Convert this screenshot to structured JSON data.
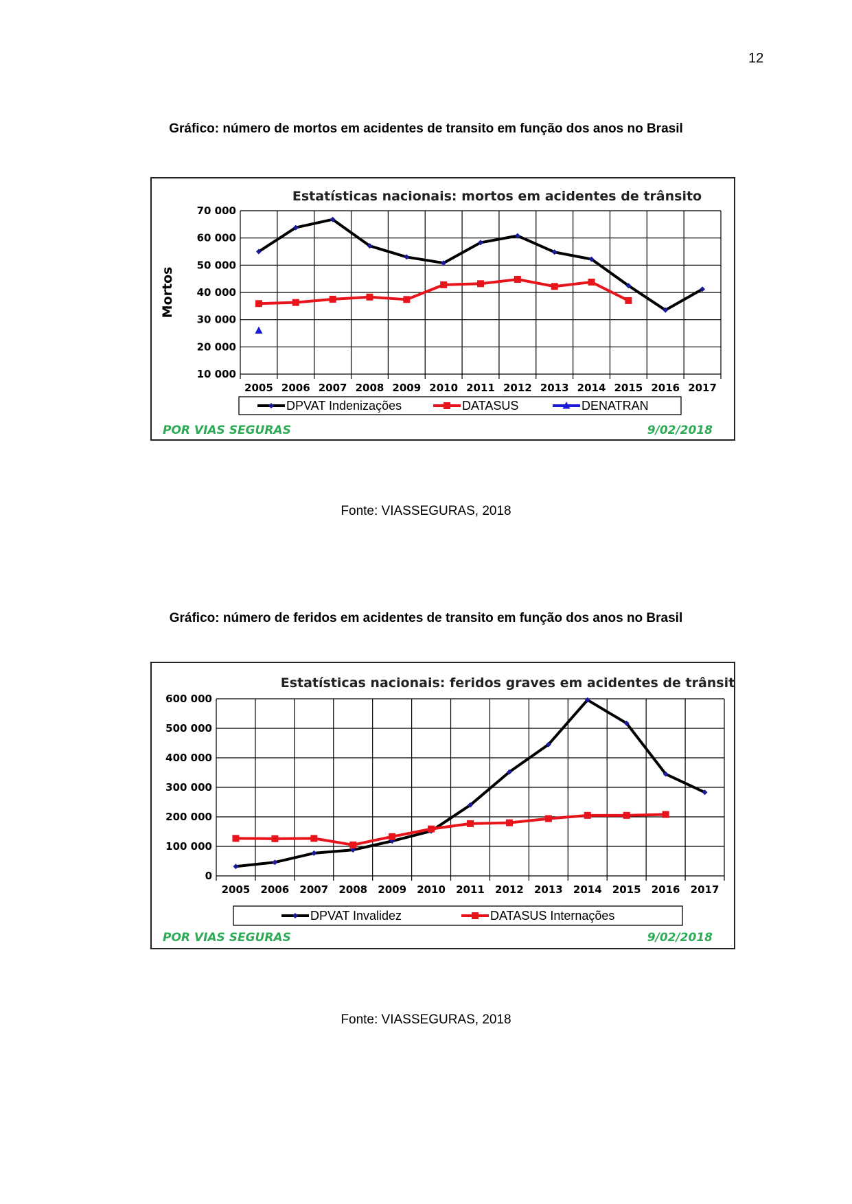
{
  "page": {
    "number": "12",
    "figures": [
      {
        "caption": "Gráfico: número de mortos em acidentes de transito em função dos anos no Brasil",
        "source": "Fonte: VIASSEGURAS, 2018",
        "brand": "POR VIAS SEGURAS",
        "date": "9/02/2018"
      },
      {
        "caption": "Gráfico: número de feridos em acidentes de transito em função dos anos no Brasil",
        "source": "Fonte: VIASSEGURAS, 2018",
        "brand": "POR VIAS SEGURAS",
        "date": "9/02/2018"
      }
    ]
  },
  "chart_data": [
    {
      "type": "line",
      "title": "Estatísticas nacionais: mortos em acidentes de trânsito",
      "xlabel": "",
      "ylabel": "Mortos",
      "categories": [
        "2005",
        "2006",
        "2007",
        "2008",
        "2009",
        "2010",
        "2011",
        "2012",
        "2013",
        "2014",
        "2015",
        "2016",
        "2017"
      ],
      "ylim": [
        10000,
        70000
      ],
      "yticks": [
        10000,
        20000,
        30000,
        40000,
        50000,
        60000,
        70000
      ],
      "ytick_labels": [
        "10 000",
        "20 000",
        "30 000",
        "40 000",
        "50 000",
        "60 000",
        "70 000"
      ],
      "grid": true,
      "legend_position": "bottom",
      "series": [
        {
          "name": "DPVAT Indenizações",
          "color": "#000000",
          "marker": "diamond",
          "values": [
            55000,
            63800,
            66800,
            57100,
            53000,
            50800,
            58300,
            60800,
            54800,
            52200,
            42500,
            33500,
            41200
          ]
        },
        {
          "name": "DATASUS",
          "color": "#e8141b",
          "marker": "square",
          "values": [
            35900,
            36300,
            37500,
            38300,
            37400,
            42800,
            43200,
            44800,
            42200,
            43800,
            37000,
            null,
            null
          ]
        },
        {
          "name": "DENATRAN",
          "color": "#1a1ad6",
          "marker": "triangle",
          "values": [
            26000,
            null,
            null,
            null,
            null,
            null,
            null,
            null,
            null,
            null,
            null,
            null,
            null
          ]
        }
      ]
    },
    {
      "type": "line",
      "title": "Estatísticas nacionais: feridos graves em acidentes de trânsito",
      "xlabel": "",
      "ylabel": "",
      "categories": [
        "2005",
        "2006",
        "2007",
        "2008",
        "2009",
        "2010",
        "2011",
        "2012",
        "2013",
        "2014",
        "2015",
        "2016",
        "2017"
      ],
      "ylim": [
        0,
        600000
      ],
      "yticks": [
        0,
        100000,
        200000,
        300000,
        400000,
        500000,
        600000
      ],
      "ytick_labels": [
        "0",
        "100 000",
        "200 000",
        "300 000",
        "400 000",
        "500 000",
        "600 000"
      ],
      "grid": true,
      "legend_position": "bottom",
      "series": [
        {
          "name": "DPVAT Invalidez",
          "color": "#000000",
          "marker": "diamond",
          "values": [
            32000,
            46000,
            77000,
            88000,
            118000,
            152000,
            240000,
            352000,
            445000,
            596000,
            517000,
            345000,
            283000
          ]
        },
        {
          "name": "DATASUS Internações",
          "color": "#e8141b",
          "marker": "square",
          "values": [
            127000,
            126000,
            127000,
            105000,
            133000,
            159000,
            177000,
            180000,
            194000,
            205000,
            205000,
            208000,
            null
          ]
        }
      ]
    }
  ]
}
